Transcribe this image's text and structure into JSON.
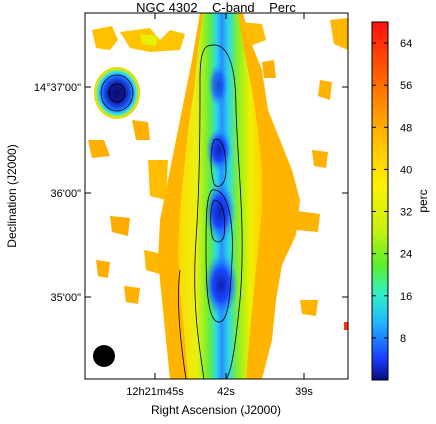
{
  "chart_data": {
    "type": "heatmap",
    "title": "NGC 4302    C-band    Perc",
    "xlabel": "Right Ascension (J2000)",
    "ylabel": "Declination (J2000)",
    "x_ticks": [
      "12h21m45s",
      "42s",
      "39s"
    ],
    "y_ticks": [
      "35'00\"",
      "36'00\"",
      "14°37'00\""
    ],
    "colorbar": {
      "label": "perc",
      "range": [
        0,
        68
      ],
      "ticks": [
        8,
        16,
        24,
        32,
        40,
        48,
        56,
        64
      ],
      "colors": [
        "#0a0a7a",
        "#1a3cff",
        "#21b6ff",
        "#2ff0c8",
        "#5af02a",
        "#c8f010",
        "#fff000",
        "#ffb000",
        "#ff6000",
        "#ff1010"
      ]
    },
    "features": {
      "galaxy_disk": "elongated north-south emission ridge with low perc (blue) along the centre and high perc (yellow/red) at the edges",
      "compact_source": "compact low-perc source to the upper left",
      "beam": "filled black circle, lower left",
      "contours": "black contour lines tracing the disk"
    }
  }
}
